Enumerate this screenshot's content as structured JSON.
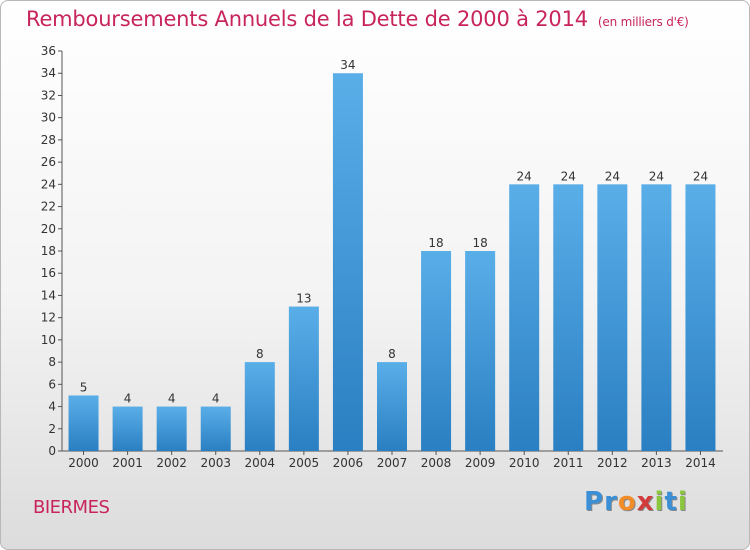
{
  "header": {
    "title": "Remboursements Annuels de la Dette de 2000 à 2014",
    "unit": "(en milliers d'€)"
  },
  "footer": {
    "commune": "BIERMES",
    "logo_letters": [
      {
        "ch": "P",
        "color": "#3a8fd6"
      },
      {
        "ch": "r",
        "color": "#3a8fd6"
      },
      {
        "ch": "o",
        "color": "#f28c28"
      },
      {
        "ch": "x",
        "color": "#d23c3c"
      },
      {
        "ch": "i",
        "color": "#8cc63f"
      },
      {
        "ch": "t",
        "color": "#3a8fd6"
      },
      {
        "ch": "i",
        "color": "#8cc63f"
      }
    ]
  },
  "colors": {
    "bar_top": "#5aaee8",
    "bar_bottom": "#2a7fc2",
    "title": "#c8245d"
  },
  "chart_data": {
    "type": "bar",
    "title": "Remboursements Annuels de la Dette de 2000 à 2014",
    "xlabel": "",
    "ylabel": "",
    "categories": [
      "2000",
      "2001",
      "2002",
      "2003",
      "2004",
      "2005",
      "2006",
      "2007",
      "2008",
      "2009",
      "2010",
      "2011",
      "2012",
      "2013",
      "2014"
    ],
    "values": [
      5,
      4,
      4,
      4,
      8,
      13,
      34,
      8,
      18,
      18,
      24,
      24,
      24,
      24,
      24
    ],
    "ylim": [
      0,
      36
    ],
    "yticks": [
      0,
      2,
      4,
      6,
      8,
      10,
      12,
      14,
      16,
      18,
      20,
      22,
      24,
      26,
      28,
      30,
      32,
      34,
      36
    ],
    "grid": false,
    "legend": "none"
  }
}
